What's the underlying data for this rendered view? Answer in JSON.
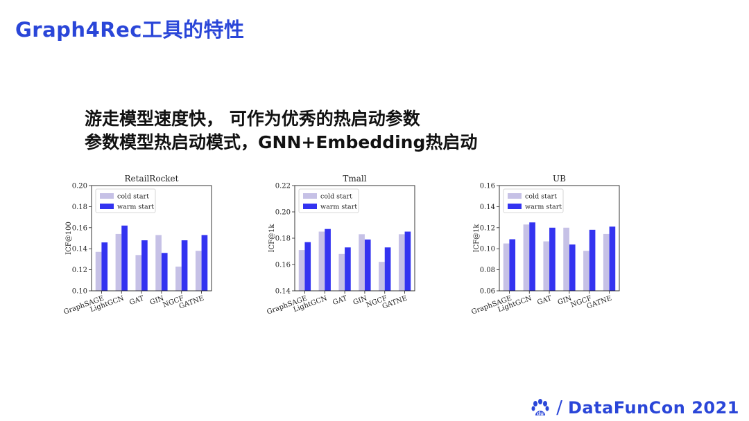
{
  "slide": {
    "title": "Graph4Rec工具的特性",
    "lines": [
      "游走模型速度快， 可作为优秀的热启动参数",
      "参数模型热启动模式，GNN+Embedding热启动"
    ],
    "footer": "DataFunCon 2021",
    "footer_separator": "/",
    "logo_icon": "baidu-paw-icon",
    "logo_text": "du"
  },
  "colors": {
    "cold": "#c6c1e6",
    "warm": "#3333f0",
    "accent": "#2a46d8"
  },
  "chart_data": [
    {
      "type": "bar",
      "title": "RetailRocket",
      "ylabel": "ICF@100",
      "categories": [
        "GraphSAGE",
        "LightGCN",
        "GAT",
        "GIN",
        "NGCF",
        "GATNE"
      ],
      "series": [
        {
          "name": "cold start",
          "values": [
            0.137,
            0.154,
            0.134,
            0.153,
            0.123,
            0.138
          ]
        },
        {
          "name": "warm start",
          "values": [
            0.146,
            0.162,
            0.148,
            0.136,
            0.148,
            0.153
          ]
        }
      ],
      "ylim": [
        0.1,
        0.2
      ],
      "yticks": [
        "0.10",
        "0.12",
        "0.14",
        "0.16",
        "0.18",
        "0.20"
      ],
      "legend": "upper-left",
      "grid": false
    },
    {
      "type": "bar",
      "title": "Tmall",
      "ylabel": "ICF@1k",
      "categories": [
        "GraphSAGE",
        "LightGCN",
        "GAT",
        "GIN",
        "NGCF",
        "GATNE"
      ],
      "series": [
        {
          "name": "cold start",
          "values": [
            0.171,
            0.185,
            0.168,
            0.183,
            0.162,
            0.183
          ]
        },
        {
          "name": "warm start",
          "values": [
            0.177,
            0.187,
            0.173,
            0.179,
            0.173,
            0.185
          ]
        }
      ],
      "ylim": [
        0.14,
        0.22
      ],
      "yticks": [
        "0.14",
        "0.16",
        "0.18",
        "0.20",
        "0.22"
      ],
      "legend": "upper-left",
      "grid": false
    },
    {
      "type": "bar",
      "title": "UB",
      "ylabel": "ICF@1k",
      "categories": [
        "GraphSAGE",
        "LightGCN",
        "GAT",
        "GIN",
        "NGCF",
        "GATNE"
      ],
      "series": [
        {
          "name": "cold start",
          "values": [
            0.105,
            0.123,
            0.107,
            0.12,
            0.098,
            0.114
          ]
        },
        {
          "name": "warm start",
          "values": [
            0.109,
            0.125,
            0.12,
            0.104,
            0.118,
            0.121
          ]
        }
      ],
      "ylim": [
        0.06,
        0.16
      ],
      "yticks": [
        "0.06",
        "0.08",
        "0.10",
        "0.12",
        "0.14",
        "0.16"
      ],
      "legend": "upper-left",
      "grid": false
    }
  ]
}
